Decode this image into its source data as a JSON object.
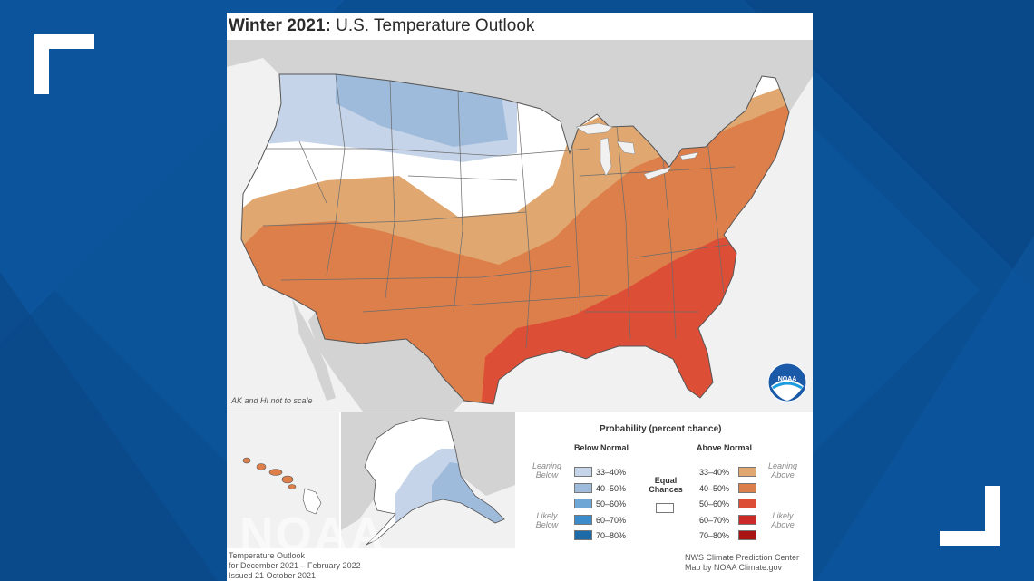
{
  "title": {
    "bold": "Winter 2021:",
    "rest": " U.S. Temperature Outlook"
  },
  "scale_note": "AK and HI not to scale",
  "logo_text": "NOAA",
  "watermark": "NOAA",
  "legend": {
    "heading": "Probability (percent chance)",
    "below_header": "Below Normal",
    "above_header": "Above Normal",
    "leaning_below": [
      "Leaning",
      "Below"
    ],
    "likely_below": [
      "Likely",
      "Below"
    ],
    "leaning_above": [
      "Leaning",
      "Above"
    ],
    "likely_above": [
      "Likely",
      "Above"
    ],
    "equal_chances": [
      "Equal",
      "Chances"
    ],
    "below_ranges": [
      "33–40%",
      "40–50%",
      "50–60%",
      "60–70%",
      "70–80%"
    ],
    "above_ranges": [
      "33–40%",
      "40–50%",
      "50–60%",
      "60–70%",
      "70–80%"
    ],
    "below_colors": [
      "#c5d4e8",
      "#9fbbdb",
      "#6ea6d6",
      "#3c8ccc",
      "#1c6aa8"
    ],
    "above_colors": [
      "#e0a870",
      "#dd7f4b",
      "#dd4e36",
      "#cc2a2a",
      "#a81414"
    ],
    "equal_color": "#ffffff"
  },
  "footer_left": [
    "Temperature Outlook",
    "for December 2021 – February 2022",
    "Issued 21 October 2021"
  ],
  "footer_right": [
    "NWS Climate Prediction Center",
    "Map by NOAA Climate.gov"
  ],
  "colors": {
    "frame_blue": "#0b4f93",
    "land_gray": "#d3d3d3",
    "water_gray": "#f1f1f1"
  }
}
